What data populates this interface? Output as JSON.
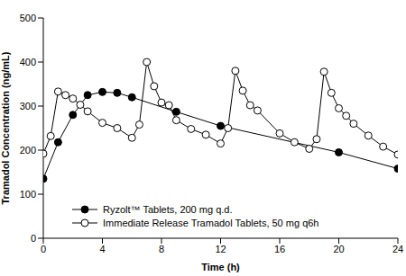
{
  "chart_data": {
    "type": "line",
    "x_label": "Time (h)",
    "y_label": "Tramadol Concentration (ng/mL)",
    "xlim": [
      0,
      24
    ],
    "xticks": [
      0,
      4,
      8,
      12,
      16,
      20,
      24
    ],
    "ylim": [
      0,
      500
    ],
    "yticks": [
      0,
      100,
      200,
      300,
      400,
      500
    ],
    "grid": false,
    "legend": "lower left",
    "series": [
      {
        "name": "Ryzolt™ Tablets, 200 mg q.d.",
        "color": "#000000",
        "marker": "filled_circle",
        "x": [
          0,
          1,
          2,
          3,
          4,
          5,
          6,
          9,
          12,
          20,
          24
        ],
        "values": [
          135,
          218,
          280,
          325,
          332,
          330,
          320,
          287,
          255,
          195,
          158
        ]
      },
      {
        "name": "Immediate Release Tramadol Tablets, 50 mg q6h",
        "color": "#000000",
        "marker": "open_circle",
        "x": [
          0,
          0.5,
          1,
          1.5,
          2,
          2.5,
          3,
          4,
          5,
          6,
          6.5,
          7,
          7.5,
          8,
          8.5,
          9,
          10,
          11,
          12,
          12.5,
          13,
          13.5,
          14,
          14.5,
          16,
          17,
          18,
          18.5,
          19,
          19.5,
          20,
          20.5,
          21,
          22,
          23,
          24
        ],
        "values": [
          192,
          232,
          333,
          325,
          317,
          303,
          288,
          262,
          250,
          228,
          258,
          400,
          345,
          308,
          302,
          268,
          248,
          235,
          215,
          250,
          380,
          335,
          302,
          290,
          238,
          218,
          203,
          225,
          378,
          330,
          295,
          278,
          260,
          233,
          208,
          190
        ]
      }
    ]
  }
}
